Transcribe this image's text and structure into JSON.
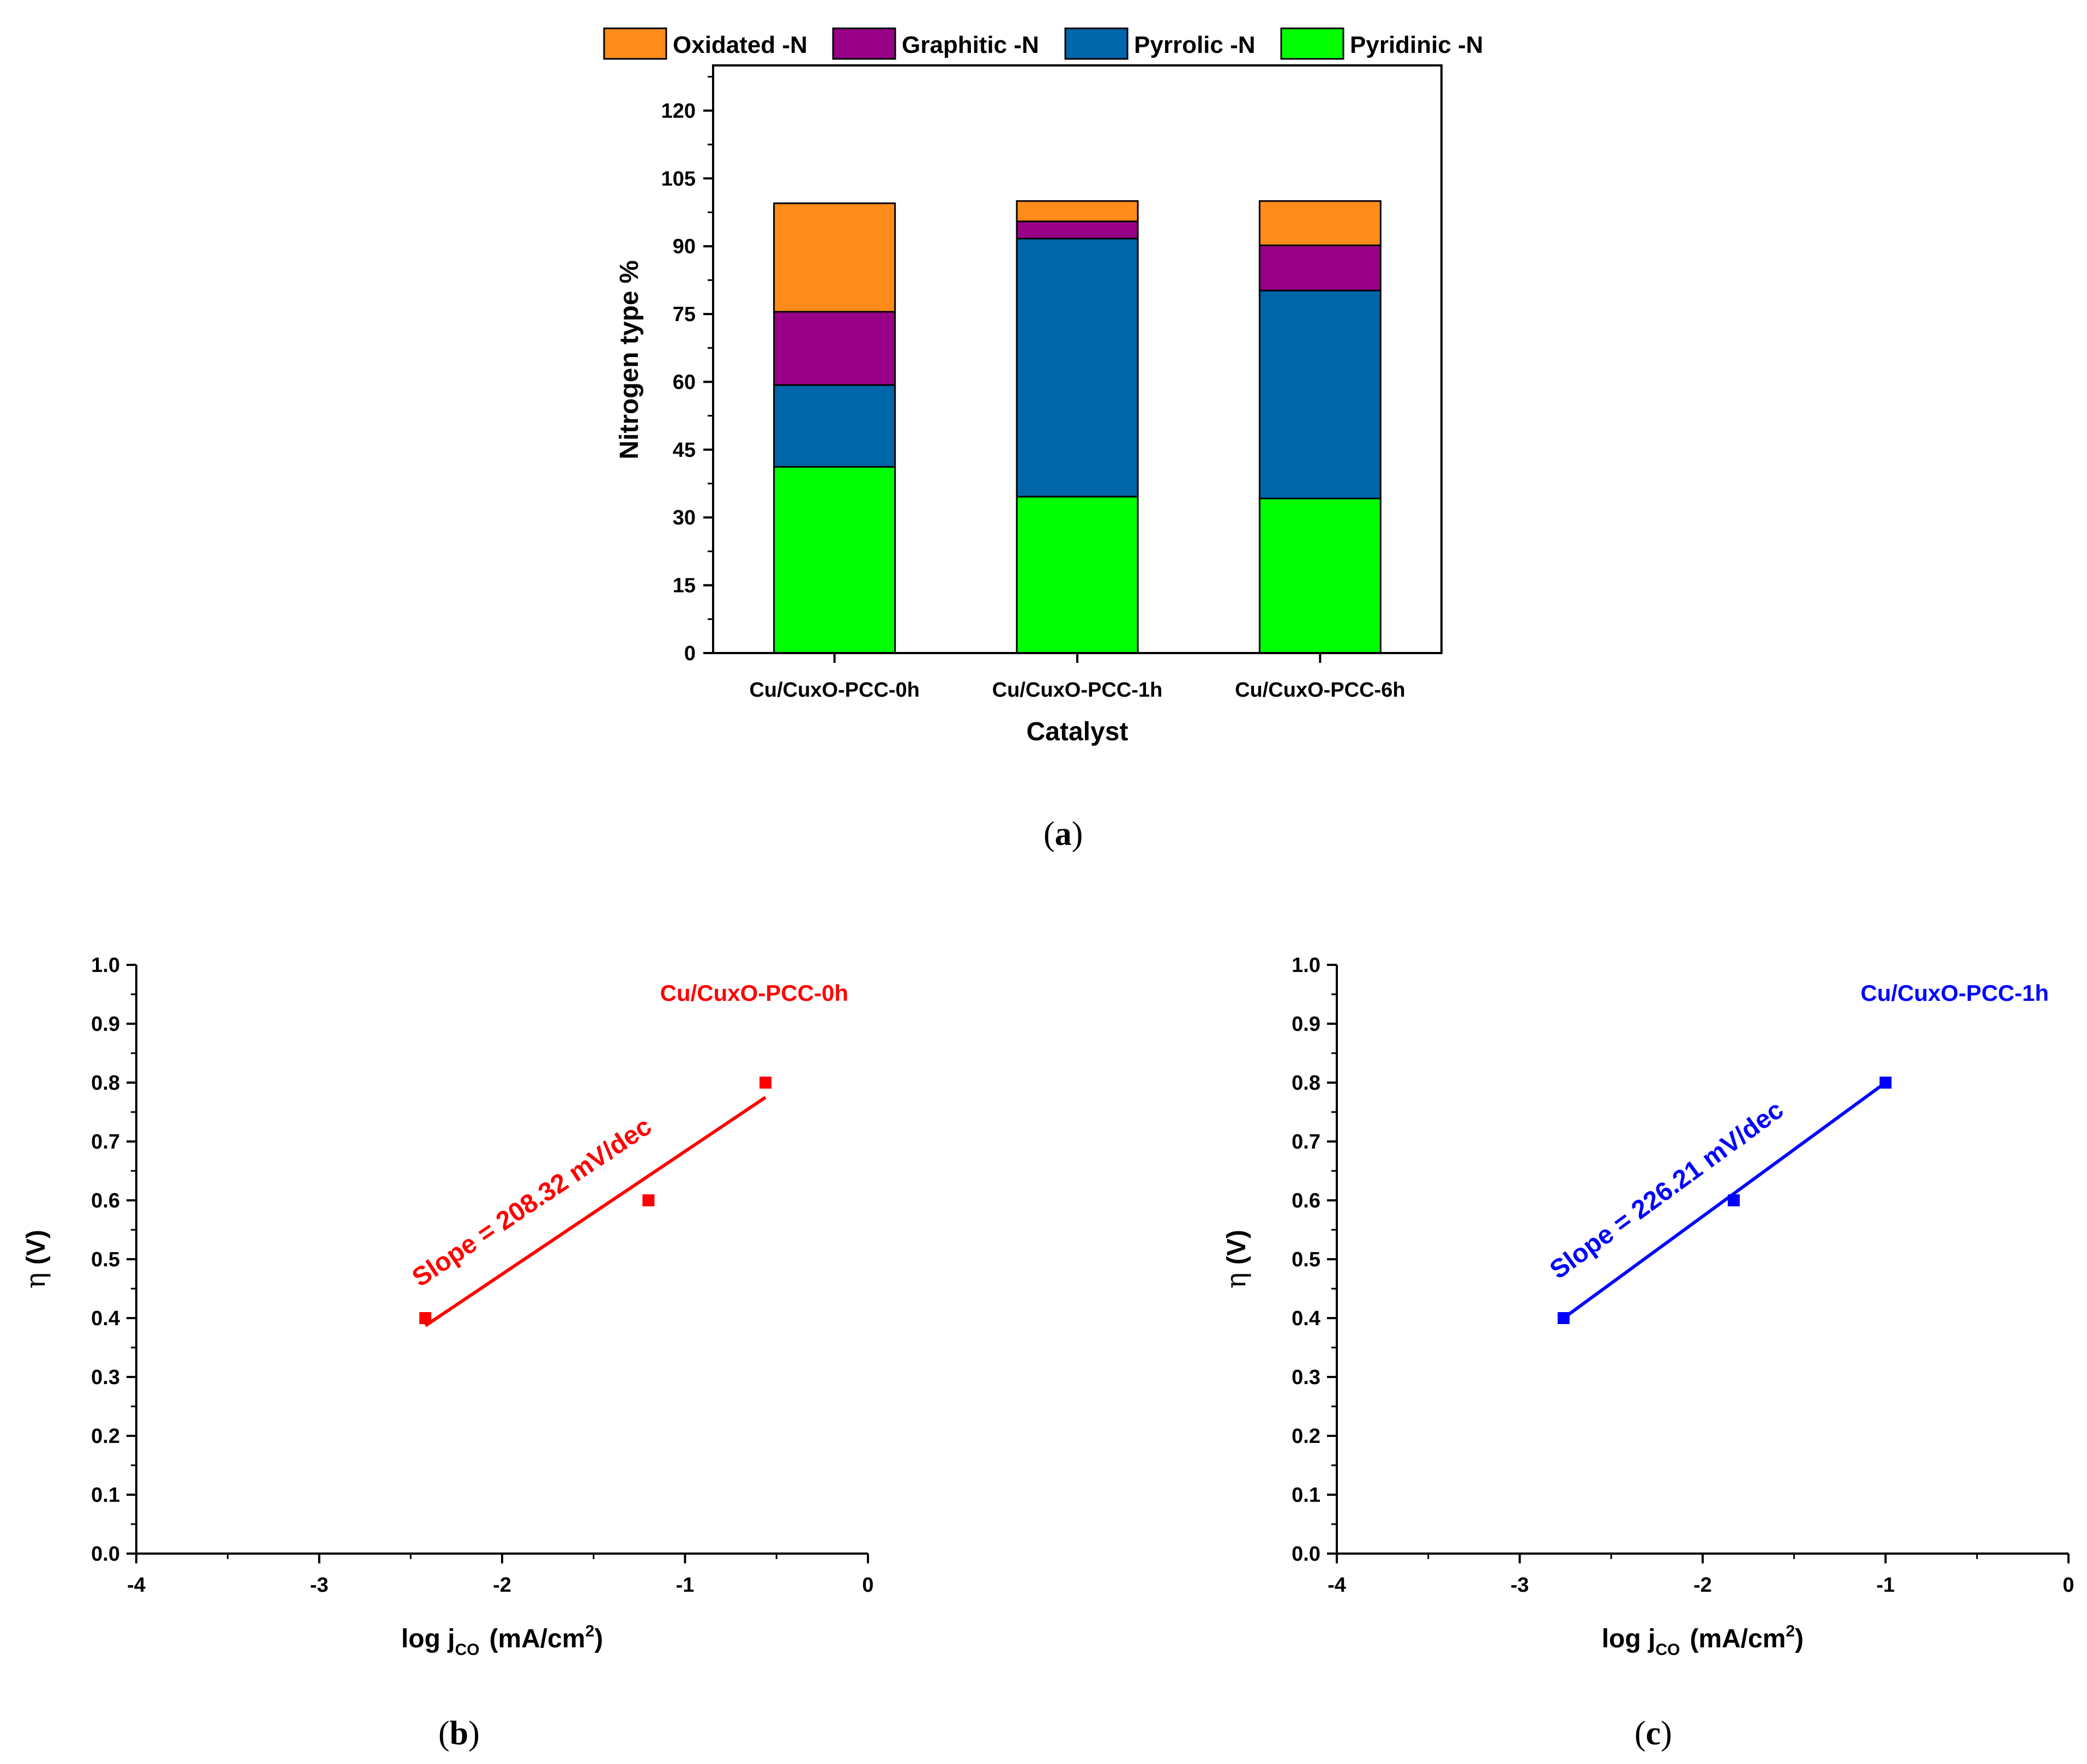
{
  "chart_data": [
    {
      "type": "bar",
      "stacked": true,
      "panel_label": "a",
      "xlabel": "Catalyst",
      "ylabel": "Nitrogen type %",
      "ylim": [
        0,
        130
      ],
      "yticks": [
        0,
        15,
        30,
        45,
        60,
        75,
        90,
        105,
        120
      ],
      "legend_position": "top-center",
      "categories": [
        "Cu/CuxO-PCC-0h",
        "Cu/CuxO-PCC-1h",
        "Cu/CuxO-PCC-6h"
      ],
      "series": [
        {
          "name": "Pyridinic -N",
          "color": "#00ff00",
          "values": [
            41.2,
            34.6,
            34.2
          ]
        },
        {
          "name": "Pyrrolic -N",
          "color": "#0066aa",
          "values": [
            18.1,
            57.1,
            46.0
          ]
        },
        {
          "name": "Graphitic -N",
          "color": "#990088",
          "values": [
            16.2,
            3.8,
            10.0
          ]
        },
        {
          "name": "Oxidated -N",
          "color": "#ff8c1a",
          "values": [
            24.0,
            4.5,
            9.8
          ]
        }
      ],
      "legend_order": [
        "Oxidated -N",
        "Graphitic -N",
        "Pyrrolic -N",
        "Pyridinic -N"
      ]
    },
    {
      "type": "scatter",
      "panel_label": "b",
      "series_name": "Cu/CuxO-PCC-0h",
      "color": "#ff0000",
      "xlabel_main": "log j",
      "xlabel_sub": "CO",
      "xlabel_unit": "(mA/cm",
      "xlabel_sup": "2",
      "xlabel_close": ")",
      "ylabel_symbol": "η",
      "ylabel_unit": "(V)",
      "xlim": [
        -4,
        0
      ],
      "ylim": [
        0,
        1.0
      ],
      "xticks": [
        -4,
        -3,
        -2,
        -1,
        0
      ],
      "yticks": [
        "0.0",
        "0.1",
        "0.2",
        "0.3",
        "0.4",
        "0.5",
        "0.6",
        "0.7",
        "0.8",
        "0.9",
        "1.0"
      ],
      "points": [
        {
          "x": -2.42,
          "y": 0.4
        },
        {
          "x": -1.2,
          "y": 0.6
        },
        {
          "x": -0.56,
          "y": 0.8
        }
      ],
      "fit_line": [
        {
          "x": -2.42,
          "y": 0.387
        },
        {
          "x": -0.56,
          "y": 0.775
        }
      ],
      "annotation": "Slope = 208.32 mV/dec"
    },
    {
      "type": "scatter",
      "panel_label": "c",
      "series_name": "Cu/CuxO-PCC-1h",
      "color": "#0000ff",
      "xlabel_main": "log j",
      "xlabel_sub": "CO",
      "xlabel_unit": "(mA/cm",
      "xlabel_sup": "2",
      "xlabel_close": ")",
      "ylabel_symbol": "η",
      "ylabel_unit": "(V)",
      "xlim": [
        -4,
        0
      ],
      "ylim": [
        0,
        1.0
      ],
      "xticks": [
        -4,
        -3,
        -2,
        -1,
        0
      ],
      "yticks": [
        "0.0",
        "0.1",
        "0.2",
        "0.3",
        "0.4",
        "0.5",
        "0.6",
        "0.7",
        "0.8",
        "0.9",
        "1.0"
      ],
      "points": [
        {
          "x": -2.76,
          "y": 0.4
        },
        {
          "x": -1.83,
          "y": 0.6
        },
        {
          "x": -1.0,
          "y": 0.8
        }
      ],
      "fit_line": [
        {
          "x": -2.76,
          "y": 0.4
        },
        {
          "x": -1.0,
          "y": 0.8
        }
      ],
      "annotation": "Slope = 226.21 mV/dec"
    }
  ]
}
